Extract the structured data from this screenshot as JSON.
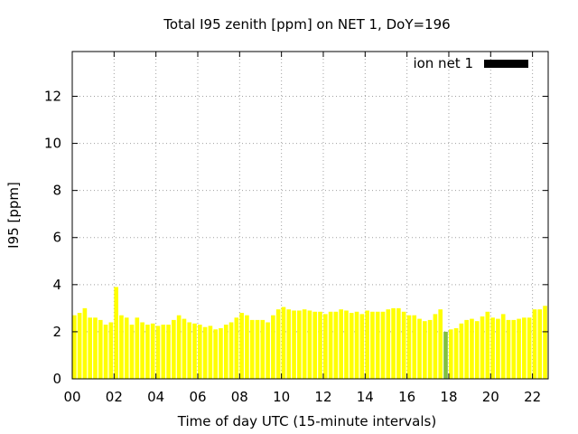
{
  "chart_data": {
    "type": "bar",
    "title": "Total I95 zenith [ppm] on NET 1, DoY=196",
    "xlabel": "Time of day UTC (15-minute intervals)",
    "ylabel": "I95 [ppm]",
    "xlim": [
      0,
      22.75
    ],
    "ylim": [
      0,
      13.9
    ],
    "grid": true,
    "legend_position": "top-right",
    "x_ticks": [
      {
        "value": 0,
        "label": "00"
      },
      {
        "value": 2,
        "label": "02"
      },
      {
        "value": 4,
        "label": "04"
      },
      {
        "value": 6,
        "label": "06"
      },
      {
        "value": 8,
        "label": "08"
      },
      {
        "value": 10,
        "label": "10"
      },
      {
        "value": 12,
        "label": "12"
      },
      {
        "value": 14,
        "label": "14"
      },
      {
        "value": 16,
        "label": "16"
      },
      {
        "value": 18,
        "label": "18"
      },
      {
        "value": 20,
        "label": "20"
      },
      {
        "value": 22,
        "label": "22"
      }
    ],
    "y_ticks": [
      {
        "value": 0,
        "label": "0"
      },
      {
        "value": 2,
        "label": "2"
      },
      {
        "value": 4,
        "label": "4"
      },
      {
        "value": 6,
        "label": "6"
      },
      {
        "value": 8,
        "label": "8"
      },
      {
        "value": 10,
        "label": "10"
      },
      {
        "value": 12,
        "label": "12"
      }
    ],
    "bar_width_hours": 0.2,
    "series": [
      {
        "name": "ion net 1",
        "legend_color": "#000000",
        "bar_color": "#ffff00",
        "highlight_color": "#80c040",
        "x_start": 0,
        "x_step": 0.25,
        "values": [
          2.7,
          2.8,
          3.0,
          2.6,
          2.6,
          2.5,
          2.3,
          2.4,
          3.9,
          2.7,
          2.6,
          2.3,
          2.6,
          2.4,
          2.3,
          2.35,
          2.25,
          2.3,
          2.3,
          2.5,
          2.7,
          2.55,
          2.4,
          2.35,
          2.3,
          2.2,
          2.25,
          2.1,
          2.15,
          2.3,
          2.4,
          2.6,
          2.8,
          2.7,
          2.5,
          2.5,
          2.5,
          2.4,
          2.7,
          2.95,
          3.05,
          2.95,
          2.9,
          2.9,
          2.95,
          2.9,
          2.85,
          2.85,
          2.75,
          2.85,
          2.85,
          2.95,
          2.9,
          2.8,
          2.85,
          2.75,
          2.9,
          2.85,
          2.85,
          2.85,
          2.95,
          3.0,
          3.0,
          2.85,
          2.7,
          2.7,
          2.55,
          2.45,
          2.5,
          2.75,
          2.95,
          2.0,
          2.1,
          2.15,
          2.35,
          2.5,
          2.55,
          2.45,
          2.65,
          2.85,
          2.6,
          2.55,
          2.75,
          2.5,
          2.5,
          2.55,
          2.6,
          2.6,
          2.95,
          2.95,
          3.1,
          3.05
        ],
        "highlight_indices": [
          71
        ]
      }
    ]
  }
}
